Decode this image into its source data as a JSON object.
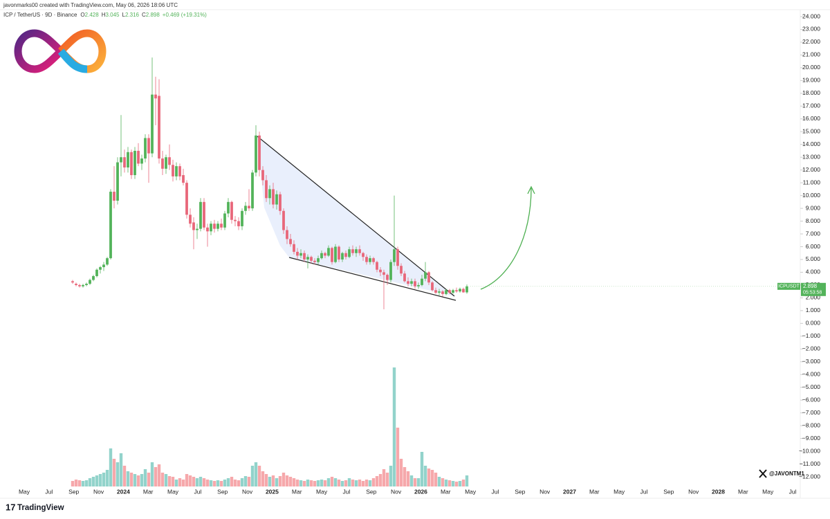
{
  "chart_data": {
    "type": "candlestick",
    "header": "javonmarks00 created with TradingView.com, May 06, 2026 18:06 UTC",
    "symbol": "ICP / TetherUS · 9D · Binance",
    "ohlc_letters": [
      "O",
      "H",
      "L",
      "C"
    ],
    "change_label": "+0.469 (+19.31%)",
    "symbol_tag": "ICPUSDT",
    "countdown": "05:53:58",
    "watermark": "@JAVONTM1",
    "brand": "TradingView",
    "up_color": "#53b35a",
    "down_color": "#e8677a",
    "up_volume_color": "#92d3cb",
    "down_volume_color": "#f6a8ab",
    "ylim": [
      -12.9,
      24.9
    ],
    "yticks": [
      {
        "value": 24,
        "label": "24.000"
      },
      {
        "value": 23,
        "label": "23.000"
      },
      {
        "value": 22,
        "label": "22.000"
      },
      {
        "value": 21,
        "label": "21.000"
      },
      {
        "value": 20,
        "label": "20.000"
      },
      {
        "value": 19,
        "label": "19.000"
      },
      {
        "value": 18,
        "label": "18.000"
      },
      {
        "value": 17,
        "label": "17.000"
      },
      {
        "value": 16,
        "label": "16.000"
      },
      {
        "value": 15,
        "label": "15.000"
      },
      {
        "value": 14,
        "label": "14.000"
      },
      {
        "value": 13,
        "label": "13.000"
      },
      {
        "value": 12,
        "label": "12.000"
      },
      {
        "value": 11,
        "label": "11.000"
      },
      {
        "value": 10,
        "label": "10.000"
      },
      {
        "value": 9,
        "label": "9.000"
      },
      {
        "value": 8,
        "label": "8.000"
      },
      {
        "value": 7,
        "label": "7.000"
      },
      {
        "value": 6,
        "label": "6.000"
      },
      {
        "value": 5,
        "label": "5.000"
      },
      {
        "value": 4,
        "label": "4.000"
      },
      {
        "value": 3,
        "label": "3.000"
      },
      {
        "value": 2,
        "label": "2.000"
      },
      {
        "value": 1,
        "label": "1.000"
      },
      {
        "value": 0,
        "label": "0.000"
      },
      {
        "value": -1,
        "label": "−1.000"
      },
      {
        "value": -2,
        "label": "−2.000"
      },
      {
        "value": -3,
        "label": "−3.000"
      },
      {
        "value": -4,
        "label": "−4.000"
      },
      {
        "value": -5,
        "label": "−5.000"
      },
      {
        "value": -6,
        "label": "−6.000"
      },
      {
        "value": -7,
        "label": "−7.000"
      },
      {
        "value": -8,
        "label": "−8.000"
      },
      {
        "value": -9,
        "label": "−9.000"
      },
      {
        "value": -10,
        "label": "−10.000"
      },
      {
        "value": -11,
        "label": "−11.000"
      },
      {
        "value": -12,
        "label": "−12.000"
      }
    ],
    "x_labels": [
      "May",
      "Jul",
      "Sep",
      "Nov",
      "2024",
      "Mar",
      "May",
      "Jul",
      "Sep",
      "Nov",
      "2025",
      "Mar",
      "May",
      "Jul",
      "Sep",
      "Nov",
      "2026",
      "Mar",
      "May",
      "Jul",
      "Sep",
      "Nov",
      "2027",
      "Mar",
      "May",
      "Jul",
      "Sep",
      "Nov",
      "2028",
      "Mar",
      "May",
      "Jul"
    ],
    "candles": [
      [
        3.3,
        3.4,
        3.1,
        3.2
      ],
      [
        3.1,
        3.2,
        2.9,
        3.0
      ],
      [
        3.0,
        3.1,
        2.8,
        2.9
      ],
      [
        2.9,
        3.1,
        2.8,
        3.0
      ],
      [
        3.0,
        3.2,
        2.9,
        3.1
      ],
      [
        3.1,
        3.5,
        3.0,
        3.4
      ],
      [
        3.4,
        3.8,
        3.3,
        3.7
      ],
      [
        3.7,
        4.3,
        3.6,
        4.2
      ],
      [
        4.2,
        4.5,
        3.9,
        4.4
      ],
      [
        4.4,
        4.8,
        4.1,
        4.6
      ],
      [
        4.6,
        5.2,
        4.5,
        5.1
      ],
      [
        5.1,
        10.5,
        5.0,
        10.3
      ],
      [
        10.3,
        12.3,
        9.0,
        9.6
      ],
      [
        9.6,
        13.0,
        9.3,
        12.6
      ],
      [
        12.6,
        16.3,
        11.5,
        13.0
      ],
      [
        13.0,
        13.6,
        11.8,
        12.2
      ],
      [
        12.2,
        13.8,
        11.8,
        13.4
      ],
      [
        13.4,
        13.6,
        11.3,
        11.6
      ],
      [
        11.6,
        13.8,
        11.3,
        13.5
      ],
      [
        13.5,
        14.1,
        12.3,
        12.5
      ],
      [
        12.5,
        13.2,
        12.0,
        12.9
      ],
      [
        12.9,
        14.8,
        12.6,
        14.5
      ],
      [
        14.5,
        14.8,
        11.0,
        13.3
      ],
      [
        13.3,
        20.8,
        13.0,
        17.9
      ],
      [
        17.9,
        19.3,
        15.5,
        17.6
      ],
      [
        17.8,
        19.1,
        12.5,
        12.9
      ],
      [
        12.9,
        13.5,
        11.6,
        12.1
      ],
      [
        12.1,
        13.2,
        11.7,
        13.0
      ],
      [
        13.0,
        14.0,
        12.0,
        12.4
      ],
      [
        12.4,
        12.8,
        11.1,
        11.5
      ],
      [
        11.5,
        12.6,
        11.2,
        12.3
      ],
      [
        12.3,
        12.5,
        11.2,
        11.5
      ],
      [
        11.6,
        12.1,
        10.8,
        11.0
      ],
      [
        11.0,
        11.2,
        8.2,
        8.5
      ],
      [
        8.5,
        9.0,
        7.5,
        7.8
      ],
      [
        7.9,
        8.3,
        5.8,
        7.3
      ],
      [
        7.3,
        7.8,
        6.6,
        7.4
      ],
      [
        7.4,
        9.8,
        7.2,
        9.5
      ],
      [
        9.5,
        9.8,
        7.3,
        7.5
      ],
      [
        7.5,
        7.8,
        6.0,
        7.2
      ],
      [
        7.2,
        8.0,
        6.9,
        7.8
      ],
      [
        7.8,
        8.1,
        7.1,
        7.4
      ],
      [
        7.4,
        8.0,
        7.2,
        7.8
      ],
      [
        7.8,
        8.2,
        7.3,
        7.5
      ],
      [
        7.5,
        8.8,
        7.3,
        8.6
      ],
      [
        8.6,
        9.8,
        8.3,
        9.5
      ],
      [
        9.5,
        9.6,
        7.8,
        8.1
      ],
      [
        8.1,
        8.4,
        7.6,
        8.0
      ],
      [
        8.0,
        8.3,
        7.3,
        7.6
      ],
      [
        7.6,
        9.0,
        7.3,
        8.8
      ],
      [
        8.8,
        9.5,
        8.5,
        9.2
      ],
      [
        9.2,
        10.5,
        8.8,
        9.0
      ],
      [
        9.0,
        12.0,
        8.8,
        11.8
      ],
      [
        11.8,
        15.5,
        11.5,
        14.7
      ],
      [
        14.7,
        15.0,
        11.5,
        12.0
      ],
      [
        12.0,
        12.3,
        10.8,
        11.2
      ],
      [
        11.2,
        11.6,
        9.5,
        9.8
      ],
      [
        9.8,
        10.8,
        9.3,
        10.5
      ],
      [
        10.5,
        11.0,
        9.0,
        9.3
      ],
      [
        9.3,
        10.4,
        8.9,
        10.1
      ],
      [
        10.1,
        10.3,
        8.5,
        8.8
      ],
      [
        8.8,
        9.0,
        7.0,
        7.3
      ],
      [
        7.3,
        7.6,
        6.2,
        6.6
      ],
      [
        6.6,
        7.0,
        6.0,
        6.2
      ],
      [
        6.2,
        6.5,
        5.4,
        5.6
      ],
      [
        5.6,
        5.9,
        5.0,
        5.3
      ],
      [
        5.3,
        5.8,
        5.1,
        5.5
      ],
      [
        5.5,
        5.7,
        4.8,
        5.0
      ],
      [
        5.0,
        5.4,
        4.3,
        5.2
      ],
      [
        5.2,
        5.3,
        4.7,
        4.9
      ],
      [
        4.9,
        5.1,
        4.6,
        4.8
      ],
      [
        4.8,
        5.3,
        4.6,
        5.1
      ],
      [
        5.1,
        5.7,
        5.0,
        5.5
      ],
      [
        5.5,
        5.6,
        5.1,
        5.3
      ],
      [
        5.3,
        6.1,
        5.2,
        5.9
      ],
      [
        5.9,
        6.0,
        4.6,
        4.8
      ],
      [
        4.8,
        6.2,
        4.7,
        6.0
      ],
      [
        6.0,
        6.1,
        4.8,
        5.0
      ],
      [
        5.0,
        5.6,
        4.8,
        5.5
      ],
      [
        5.5,
        5.7,
        5.0,
        5.2
      ],
      [
        5.2,
        6.0,
        5.1,
        5.8
      ],
      [
        5.8,
        6.1,
        5.3,
        5.5
      ],
      [
        5.5,
        6.0,
        5.2,
        5.8
      ],
      [
        5.8,
        6.1,
        5.3,
        5.5
      ],
      [
        5.5,
        5.6,
        4.9,
        5.2
      ],
      [
        5.2,
        5.4,
        4.6,
        4.8
      ],
      [
        4.8,
        5.3,
        4.6,
        5.1
      ],
      [
        5.1,
        5.2,
        4.6,
        4.8
      ],
      [
        4.8,
        4.9,
        4.0,
        4.2
      ],
      [
        4.2,
        4.4,
        3.7,
        4.0
      ],
      [
        4.0,
        4.2,
        1.1,
        3.8
      ],
      [
        3.8,
        3.9,
        3.0,
        3.4
      ],
      [
        3.4,
        5.0,
        3.2,
        4.8
      ],
      [
        4.8,
        10.0,
        4.5,
        5.8
      ],
      [
        5.8,
        6.0,
        4.2,
        4.5
      ],
      [
        4.5,
        4.7,
        3.7,
        3.9
      ],
      [
        3.9,
        4.1,
        3.2,
        3.3
      ],
      [
        3.3,
        3.6,
        2.9,
        3.1
      ],
      [
        3.1,
        3.5,
        2.9,
        3.3
      ],
      [
        3.3,
        3.5,
        2.7,
        2.9
      ],
      [
        2.9,
        3.2,
        2.7,
        3.0
      ],
      [
        3.0,
        3.8,
        2.9,
        3.5
      ],
      [
        3.5,
        4.8,
        3.3,
        4.0
      ],
      [
        4.0,
        4.1,
        3.0,
        3.2
      ],
      [
        3.2,
        3.3,
        2.5,
        2.6
      ],
      [
        2.6,
        2.8,
        2.3,
        2.4
      ],
      [
        2.4,
        2.7,
        2.2,
        2.5
      ],
      [
        2.5,
        2.6,
        2.1,
        2.3
      ],
      [
        2.3,
        2.7,
        2.2,
        2.6
      ],
      [
        2.6,
        2.7,
        2.3,
        2.4
      ],
      [
        2.4,
        2.7,
        2.3,
        2.6
      ],
      [
        2.6,
        2.8,
        2.4,
        2.5
      ],
      [
        2.5,
        2.8,
        2.4,
        2.7
      ],
      [
        2.7,
        2.8,
        2.4,
        2.43
      ],
      [
        2.428,
        3.045,
        2.316,
        2.898
      ]
    ],
    "volume": [
      8,
      10,
      9,
      8,
      9,
      12,
      14,
      16,
      18,
      20,
      24,
      55,
      40,
      35,
      48,
      30,
      22,
      20,
      18,
      16,
      18,
      25,
      20,
      35,
      28,
      32,
      20,
      18,
      15,
      14,
      10,
      12,
      10,
      18,
      16,
      14,
      12,
      14,
      12,
      10,
      9,
      8,
      9,
      8,
      10,
      12,
      14,
      10,
      9,
      12,
      15,
      14,
      30,
      35,
      30,
      22,
      18,
      14,
      16,
      12,
      15,
      20,
      16,
      14,
      12,
      10,
      9,
      8,
      10,
      9,
      8,
      9,
      10,
      9,
      12,
      14,
      12,
      10,
      8,
      9,
      12,
      10,
      9,
      10,
      8,
      10,
      9,
      12,
      15,
      18,
      25,
      20,
      30,
      172,
      85,
      40,
      28,
      22,
      16,
      12,
      12,
      50,
      30,
      26,
      24,
      20,
      14,
      12,
      10,
      9,
      8,
      7,
      8,
      10,
      16
    ]
  }
}
